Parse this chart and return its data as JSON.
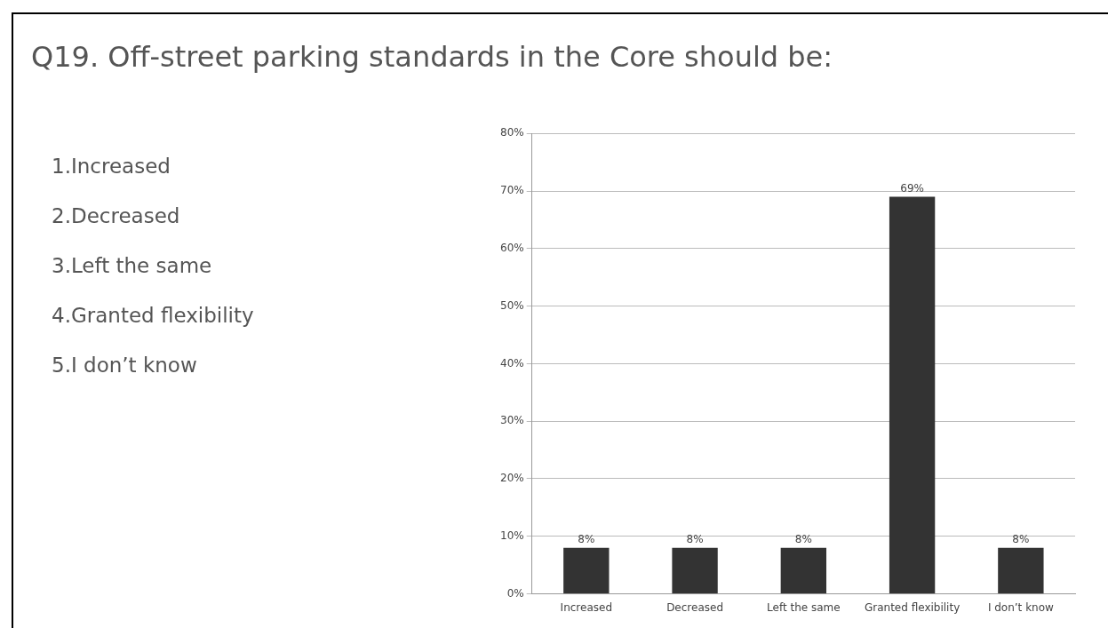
{
  "chart_data": {
    "type": "bar",
    "title": "Q19.  Off-street parking standards in the Core should be:",
    "annotations": [
      "1.Increased",
      "2.Decreased",
      "3.Left the same",
      "4.Granted flexibility",
      "5.I don’t know"
    ],
    "categories": [
      "Increased",
      "Decreased",
      "Left the same",
      "Granted flexibility",
      "I don’t know"
    ],
    "values": [
      8,
      8,
      8,
      69,
      8
    ],
    "value_labels": [
      "8%",
      "8%",
      "8%",
      "69%",
      "8%"
    ],
    "color": "#333333",
    "ylim": [
      0,
      80
    ],
    "yticks": [
      {
        "value": 0,
        "label": "0%"
      },
      {
        "value": 10,
        "label": "10%"
      },
      {
        "value": 20,
        "label": "20%"
      },
      {
        "value": 30,
        "label": "30%"
      },
      {
        "value": 40,
        "label": "40%"
      },
      {
        "value": 50,
        "label": "50%"
      },
      {
        "value": 60,
        "label": "60%"
      },
      {
        "value": 70,
        "label": "70%"
      },
      {
        "value": 80,
        "label": "80%"
      }
    ],
    "grid": "y",
    "legend": false
  }
}
